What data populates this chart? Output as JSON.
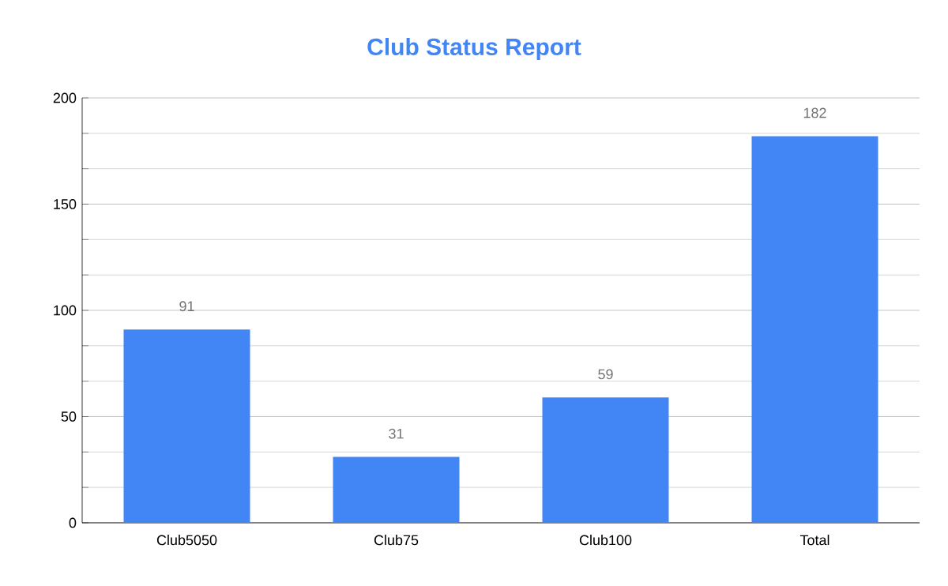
{
  "chart_data": {
    "type": "bar",
    "title": "Club Status Report",
    "categories": [
      "Club5050",
      "Club75",
      "Club100",
      "Total"
    ],
    "values": [
      91,
      31,
      59,
      182
    ],
    "color": "#4285f4",
    "ylim": [
      0,
      200
    ],
    "yticks": [
      0,
      50,
      100,
      150,
      200
    ],
    "grid": "y",
    "data_labels": true
  }
}
